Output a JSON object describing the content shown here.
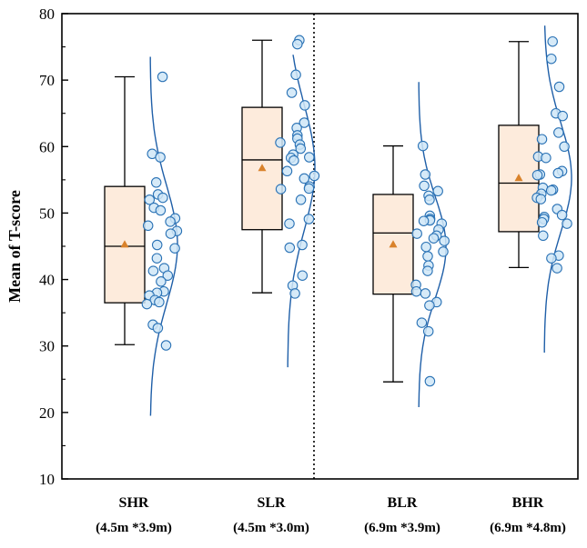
{
  "chart_data": {
    "type": "box",
    "title": "",
    "xlabel": "",
    "ylabel": "Mean of T-score",
    "ylim": [
      10,
      80
    ],
    "yticks": [
      10,
      20,
      30,
      40,
      50,
      60,
      70,
      80
    ],
    "divider_after_index": 1,
    "colors": {
      "box_fill": "#fdebdc",
      "box_stroke": "#000000",
      "mean_marker": "#d9822b",
      "point_fill": "#cfe6f7",
      "point_stroke": "#2a72b5",
      "curve": "#1f5fa8"
    },
    "groups": [
      {
        "name": "SHR",
        "subtitle": "(4.5m *3.9m)",
        "whisker_low": 30.2,
        "q1": 36.5,
        "median": 45.0,
        "q3": 54.0,
        "whisker_high": 70.5,
        "mean": 45.3,
        "points": [
          70.5,
          58.9,
          58.4,
          54.6,
          52.8,
          52.3,
          52.0,
          50.8,
          50.4,
          49.2,
          48.7,
          48.1,
          47.3,
          46.9,
          45.2,
          44.7,
          43.2,
          41.7,
          41.3,
          40.6,
          39.7,
          38.2,
          38.0,
          37.6,
          36.9,
          36.6,
          36.3,
          33.2,
          32.7,
          30.1
        ],
        "curve_range": [
          19.5,
          73.5
        ]
      },
      {
        "name": "SLR",
        "subtitle": "(4.5m *3.0m)",
        "whisker_low": 38.0,
        "q1": 47.5,
        "median": 58.0,
        "q3": 65.9,
        "whisker_high": 76.0,
        "mean": 56.8,
        "points": [
          76.0,
          75.4,
          70.8,
          68.1,
          66.2,
          63.6,
          62.8,
          61.7,
          61.2,
          60.6,
          60.3,
          59.7,
          58.8,
          58.4,
          58.3,
          57.9,
          56.3,
          55.6,
          55.2,
          54.0,
          53.7,
          53.6,
          52.0,
          49.1,
          48.4,
          45.2,
          44.8,
          40.6,
          39.1,
          37.9
        ],
        "curve_range": [
          26.8,
          73.8
        ]
      },
      {
        "name": "BLR",
        "subtitle": "(6.9m *3.9m)",
        "whisker_low": 24.6,
        "q1": 37.8,
        "median": 47.0,
        "q3": 52.8,
        "whisker_high": 60.1,
        "mean": 45.3,
        "points": [
          60.1,
          55.8,
          54.1,
          53.3,
          52.6,
          52.0,
          49.6,
          49.1,
          48.9,
          48.8,
          48.4,
          47.5,
          46.9,
          46.6,
          46.2,
          45.8,
          44.9,
          44.2,
          43.5,
          42.1,
          41.3,
          39.2,
          38.2,
          37.9,
          36.6,
          36.1,
          33.5,
          32.2,
          24.7
        ],
        "curve_range": [
          20.8,
          69.7
        ]
      },
      {
        "name": "BHR",
        "subtitle": "(6.9m *4.8m)",
        "whisker_low": 41.8,
        "q1": 47.2,
        "median": 54.5,
        "q3": 63.2,
        "whisker_high": 75.8,
        "mean": 55.3,
        "points": [
          75.8,
          73.2,
          69.0,
          65.0,
          64.6,
          62.1,
          61.1,
          60.0,
          58.5,
          58.3,
          56.3,
          56.0,
          55.8,
          55.7,
          53.8,
          53.5,
          53.4,
          52.9,
          52.3,
          52.1,
          50.6,
          49.7,
          49.4,
          49.1,
          48.6,
          48.4,
          46.6,
          43.6,
          43.2,
          41.7
        ],
        "curve_range": [
          29.0,
          78.2
        ]
      }
    ]
  }
}
